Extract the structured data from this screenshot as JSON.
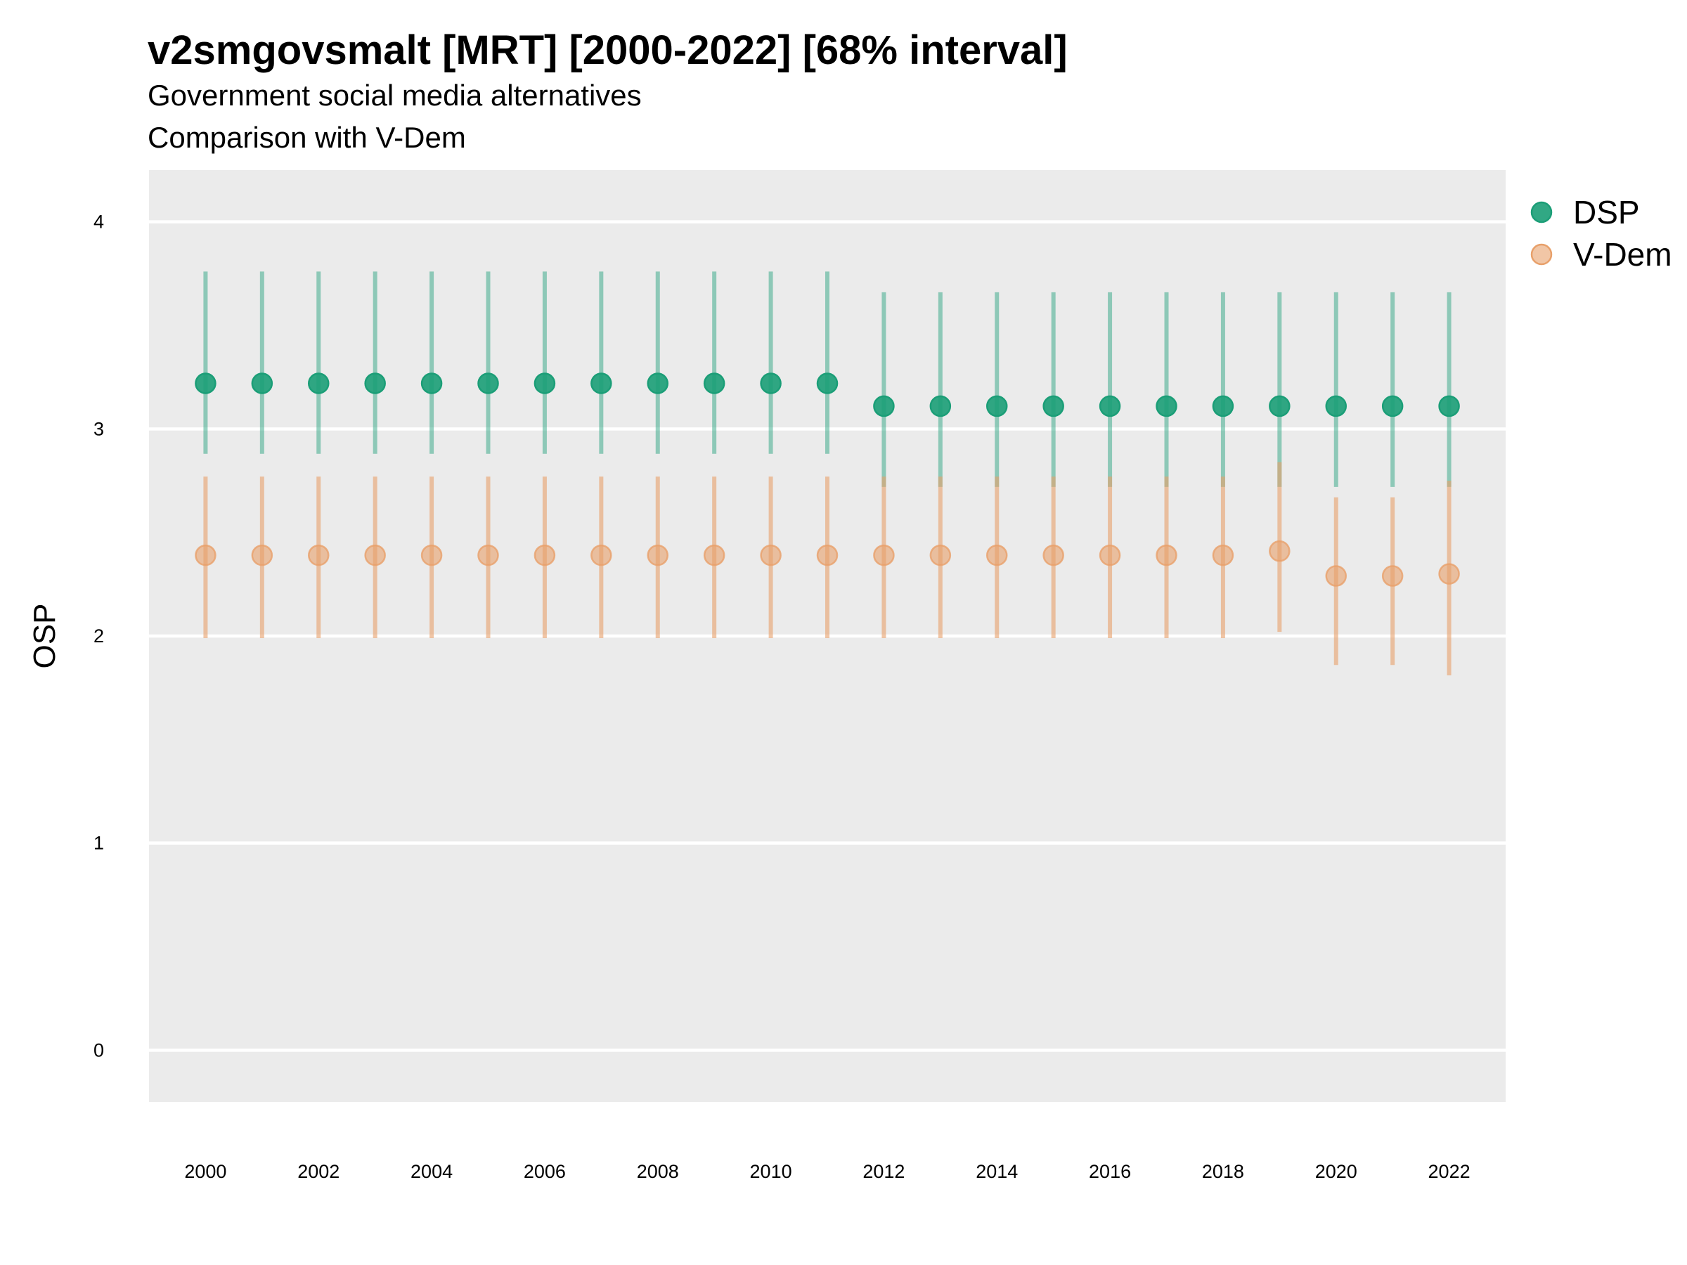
{
  "chart_data": {
    "type": "scatter",
    "title": "v2smgovsmalt [MRT] [2000-2022] [68% interval]",
    "subtitle": "Government social media alternatives",
    "caption": "Comparison with V-Dem",
    "ylabel": "OSP",
    "xlabel": "",
    "ylim": [
      -0.25,
      4.25
    ],
    "xlim": [
      1999.0,
      2023.0
    ],
    "yticks": [
      0,
      1,
      2,
      3,
      4
    ],
    "xticks": [
      2000,
      2002,
      2004,
      2006,
      2008,
      2010,
      2012,
      2014,
      2016,
      2018,
      2020,
      2022
    ],
    "grid": true,
    "legend_position": "right",
    "x": [
      2000,
      2001,
      2002,
      2003,
      2004,
      2005,
      2006,
      2007,
      2008,
      2009,
      2010,
      2011,
      2012,
      2013,
      2014,
      2015,
      2016,
      2017,
      2018,
      2019,
      2020,
      2021,
      2022
    ],
    "series": [
      {
        "name": "DSP",
        "color": "#1b9e77",
        "values": [
          3.22,
          3.22,
          3.22,
          3.22,
          3.22,
          3.22,
          3.22,
          3.22,
          3.22,
          3.22,
          3.22,
          3.22,
          3.11,
          3.11,
          3.11,
          3.11,
          3.11,
          3.11,
          3.11,
          3.11,
          3.11,
          3.11,
          3.11
        ],
        "lower": [
          2.88,
          2.88,
          2.88,
          2.88,
          2.88,
          2.88,
          2.88,
          2.88,
          2.88,
          2.88,
          2.88,
          2.88,
          2.72,
          2.72,
          2.72,
          2.72,
          2.72,
          2.72,
          2.72,
          2.72,
          2.72,
          2.72,
          2.72
        ],
        "upper": [
          3.76,
          3.76,
          3.76,
          3.76,
          3.76,
          3.76,
          3.76,
          3.76,
          3.76,
          3.76,
          3.76,
          3.76,
          3.66,
          3.66,
          3.66,
          3.66,
          3.66,
          3.66,
          3.66,
          3.66,
          3.66,
          3.66,
          3.66
        ]
      },
      {
        "name": "V-Dem",
        "color": "#e8a06a",
        "values": [
          2.39,
          2.39,
          2.39,
          2.39,
          2.39,
          2.39,
          2.39,
          2.39,
          2.39,
          2.39,
          2.39,
          2.39,
          2.39,
          2.39,
          2.39,
          2.39,
          2.39,
          2.39,
          2.39,
          2.41,
          2.29,
          2.29,
          2.3
        ],
        "lower": [
          1.99,
          1.99,
          1.99,
          1.99,
          1.99,
          1.99,
          1.99,
          1.99,
          1.99,
          1.99,
          1.99,
          1.99,
          1.99,
          1.99,
          1.99,
          1.99,
          1.99,
          1.99,
          1.99,
          2.02,
          1.86,
          1.86,
          1.81
        ],
        "upper": [
          2.77,
          2.77,
          2.77,
          2.77,
          2.77,
          2.77,
          2.77,
          2.77,
          2.77,
          2.77,
          2.77,
          2.77,
          2.77,
          2.77,
          2.77,
          2.77,
          2.77,
          2.77,
          2.77,
          2.84,
          2.67,
          2.67,
          2.75
        ]
      }
    ]
  }
}
